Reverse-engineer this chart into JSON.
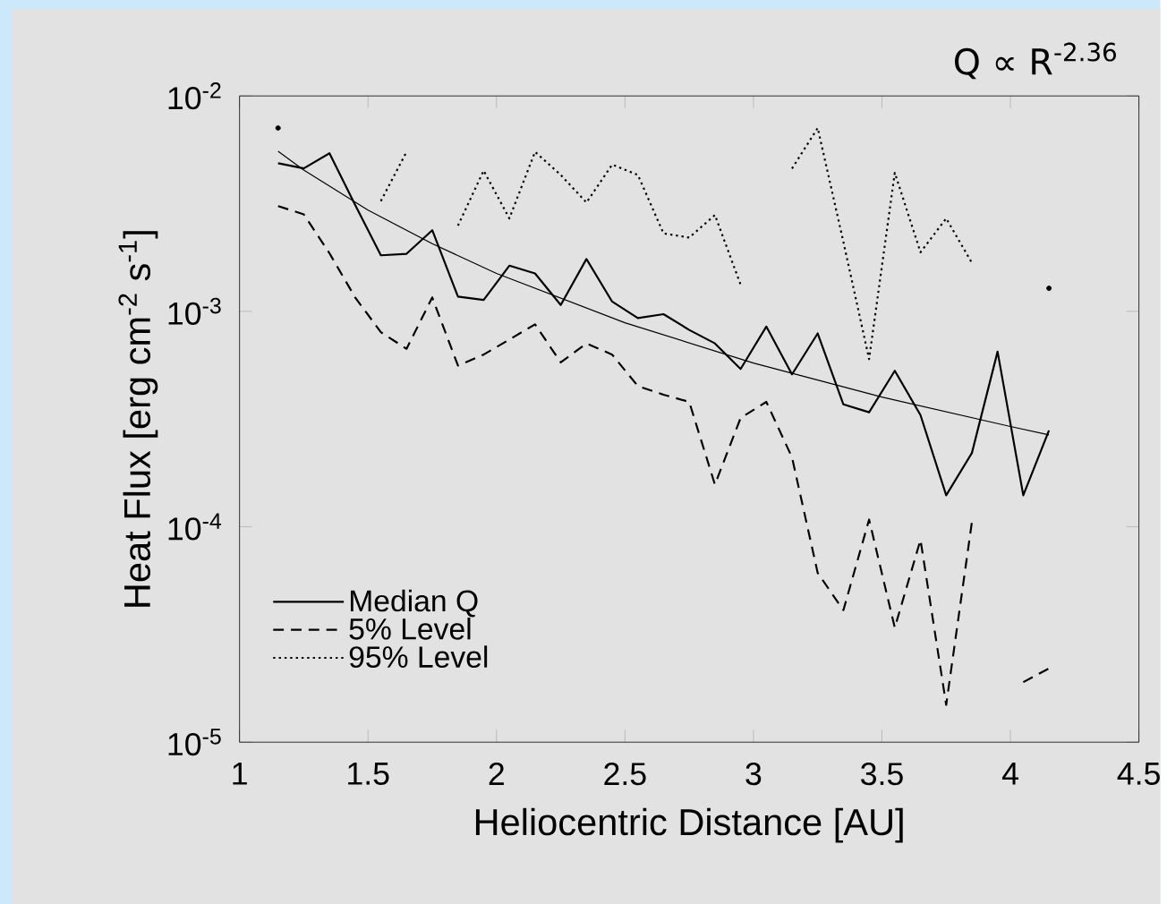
{
  "chart_data": {
    "type": "line",
    "x": [
      1.15,
      1.25,
      1.35,
      1.45,
      1.55,
      1.65,
      1.75,
      1.85,
      1.95,
      2.05,
      2.15,
      2.25,
      2.35,
      2.45,
      2.55,
      2.65,
      2.75,
      2.85,
      2.95,
      3.05,
      3.15,
      3.25,
      3.35,
      3.45,
      3.55,
      3.65,
      3.75,
      3.85,
      3.95,
      4.05,
      4.15
    ],
    "series": [
      {
        "name": "Median Q",
        "color": "#000000",
        "line_style": "solid",
        "values": [
          0.00487,
          0.00461,
          0.00542,
          0.00312,
          0.00182,
          0.00185,
          0.00238,
          0.00117,
          0.00113,
          0.00163,
          0.0015,
          0.00107,
          0.00175,
          0.00111,
          0.00093,
          0.00097,
          0.00082,
          0.00071,
          0.00054,
          0.00085,
          0.00051,
          0.00079,
          0.00037,
          0.00034,
          0.00053,
          0.00033,
          0.00014,
          0.00022,
          0.00065,
          0.00014,
          0.00028
        ]
      },
      {
        "name": "5% Level",
        "color": "#000000",
        "line_style": "dashed",
        "values": [
          0.00308,
          0.00282,
          0.00186,
          0.00116,
          0.0008,
          0.00067,
          0.00116,
          0.00056,
          0.00063,
          0.00074,
          0.00087,
          0.00058,
          0.00071,
          0.00063,
          0.00045,
          0.00041,
          0.00038,
          0.000157,
          0.00032,
          0.00038,
          0.00021,
          6.1e-05,
          4.1e-05,
          0.000108,
          3.4e-05,
          8.7e-05,
          1.49e-05,
          0.000105,
          null,
          1.9e-05,
          2.2e-05
        ]
      },
      {
        "name": "95% Level",
        "color": "#000000",
        "line_style": "dotted",
        "values": [
          0.0071,
          null,
          null,
          null,
          0.00325,
          0.0055,
          null,
          0.0025,
          0.0045,
          0.0027,
          0.0055,
          0.0043,
          0.0032,
          0.0048,
          0.0043,
          0.0023,
          0.0022,
          0.0028,
          0.00133,
          null,
          0.0046,
          0.0071,
          0.0021,
          0.0006,
          0.0044,
          0.00188,
          0.0027,
          0.00168,
          null,
          null,
          0.00128
        ]
      },
      {
        "type": "line",
        "color": "#000000",
        "line_style": "solid",
        "x": [
          1.15,
          1.25,
          1.5,
          1.75,
          2,
          2.5,
          3,
          3.5,
          4,
          4.15
        ],
        "values": [
          0.00553,
          0.00453,
          0.00295,
          0.00206,
          0.0015,
          0.000885,
          0.000575,
          0.0004,
          0.000292,
          0.000267
        ]
      }
    ],
    "xlim": [
      1,
      4.5
    ],
    "ylim": [
      1e-05,
      0.01
    ],
    "xticks": [
      1,
      1.5,
      2,
      2.5,
      3,
      3.5,
      4,
      4.5
    ],
    "yticks": [
      {
        "value": 0.01,
        "label": "10$^{-2}$"
      },
      {
        "value": 0.001,
        "label": "10$^{-3}$"
      },
      {
        "value": 0.0001,
        "label": "10$^{-4}$"
      },
      {
        "value": 1e-05,
        "label": "10$^{-5}$"
      }
    ],
    "log": true,
    "xlabel": "Heliocentric  Distance  [AU]",
    "ylabel": "Heat Flux [erg cm$^{-2}$ s$^{-1}$]",
    "legend": "bottom left",
    "annotations": [
      "Q ∝ R$^{-2.36}$"
    ]
  }
}
